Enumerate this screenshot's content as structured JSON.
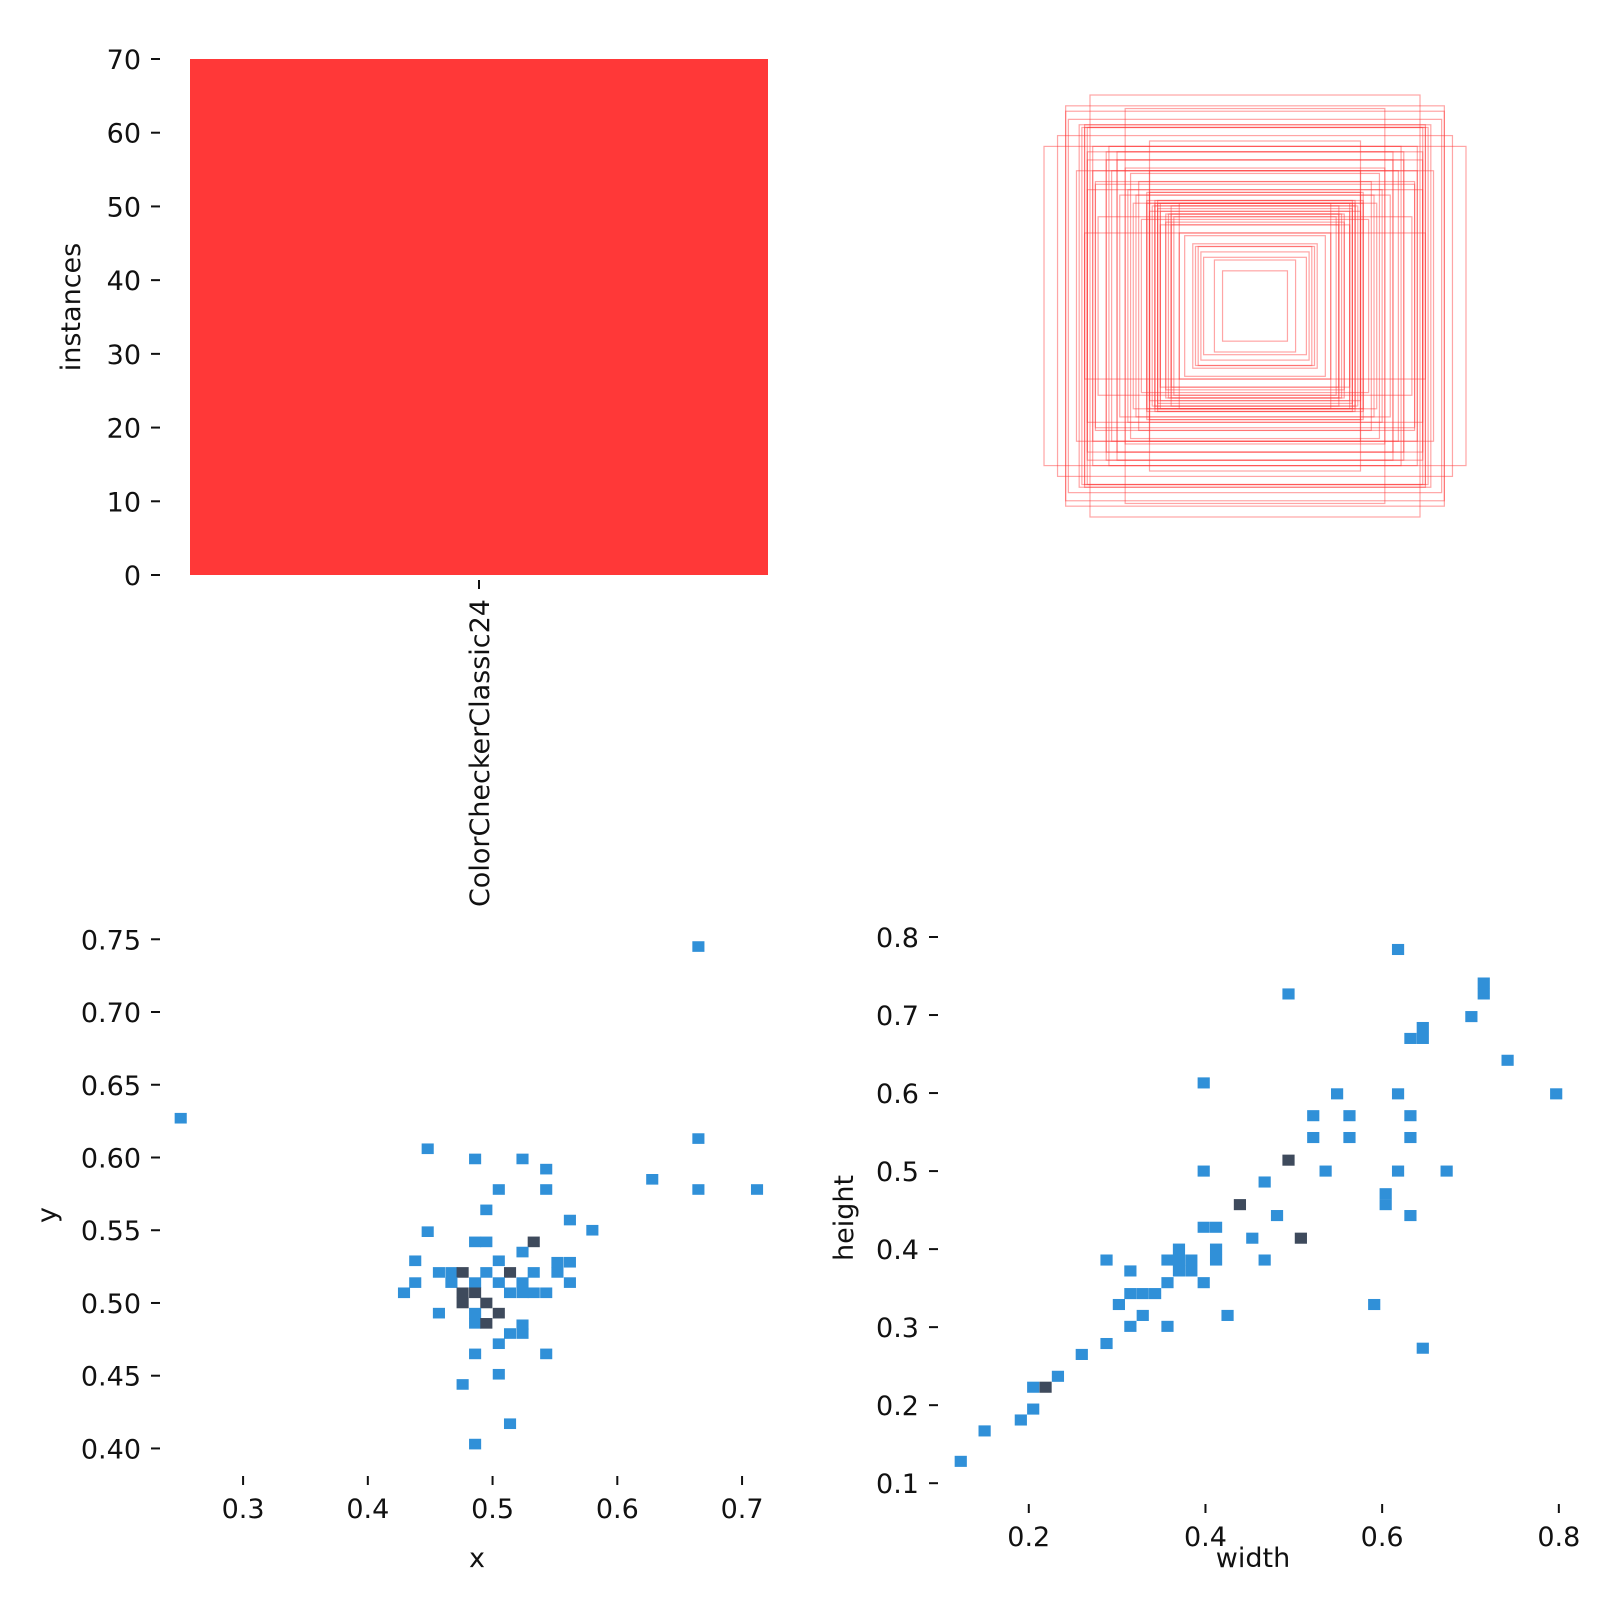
{
  "colors": {
    "bar": "#ff3838",
    "box_stroke": "#ff3838",
    "hist_low": "#3090d8",
    "hist_high": "#3e4a5c"
  },
  "chart_data": [
    {
      "name": "instances-per-class",
      "type": "bar",
      "categories": [
        "ColorCheckerClassic24"
      ],
      "values": [
        70
      ],
      "xlabel": "",
      "ylabel": "instances",
      "ylim": [
        0,
        70
      ],
      "yticks": [
        "0",
        "10",
        "20",
        "30",
        "40",
        "50",
        "60",
        "70"
      ],
      "grid": false
    },
    {
      "name": "box-shapes",
      "type": "box-overlay",
      "note_count": 70,
      "boxes_wh": [
        [
          0.12,
          0.13
        ],
        [
          0.15,
          0.17
        ],
        [
          0.19,
          0.18
        ],
        [
          0.2,
          0.2
        ],
        [
          0.21,
          0.22
        ],
        [
          0.22,
          0.22
        ],
        [
          0.23,
          0.23
        ],
        [
          0.26,
          0.26
        ],
        [
          0.28,
          0.27
        ],
        [
          0.28,
          0.38
        ],
        [
          0.3,
          0.33
        ],
        [
          0.31,
          0.3
        ],
        [
          0.31,
          0.34
        ],
        [
          0.31,
          0.37
        ],
        [
          0.32,
          0.34
        ],
        [
          0.33,
          0.31
        ],
        [
          0.33,
          0.34
        ],
        [
          0.35,
          0.3
        ],
        [
          0.35,
          0.35
        ],
        [
          0.35,
          0.38
        ],
        [
          0.36,
          0.36
        ],
        [
          0.36,
          0.38
        ],
        [
          0.37,
          0.37
        ],
        [
          0.37,
          0.38
        ],
        [
          0.37,
          0.39
        ],
        [
          0.38,
          0.37
        ],
        [
          0.39,
          0.35
        ],
        [
          0.39,
          0.42
        ],
        [
          0.39,
          0.5
        ],
        [
          0.39,
          0.61
        ],
        [
          0.4,
          0.38
        ],
        [
          0.4,
          0.39
        ],
        [
          0.4,
          0.42
        ],
        [
          0.42,
          0.32
        ],
        [
          0.43,
          0.46
        ],
        [
          0.44,
          0.41
        ],
        [
          0.45,
          0.38
        ],
        [
          0.46,
          0.49
        ],
        [
          0.47,
          0.43
        ],
        [
          0.48,
          0.51
        ],
        [
          0.48,
          0.73
        ],
        [
          0.5,
          0.41
        ],
        [
          0.51,
          0.54
        ],
        [
          0.51,
          0.57
        ],
        [
          0.53,
          0.5
        ],
        [
          0.54,
          0.59
        ],
        [
          0.55,
          0.54
        ],
        [
          0.55,
          0.57
        ],
        [
          0.58,
          0.33
        ],
        [
          0.59,
          0.45
        ],
        [
          0.59,
          0.46
        ],
        [
          0.6,
          0.5
        ],
        [
          0.6,
          0.59
        ],
        [
          0.61,
          0.78
        ],
        [
          0.62,
          0.43
        ],
        [
          0.62,
          0.54
        ],
        [
          0.62,
          0.57
        ],
        [
          0.62,
          0.66
        ],
        [
          0.63,
          0.27
        ],
        [
          0.63,
          0.66
        ],
        [
          0.63,
          0.67
        ],
        [
          0.64,
          0.66
        ],
        [
          0.65,
          0.67
        ],
        [
          0.66,
          0.5
        ],
        [
          0.69,
          0.69
        ],
        [
          0.7,
          0.72
        ],
        [
          0.7,
          0.74
        ],
        [
          0.73,
          0.63
        ],
        [
          0.78,
          0.59
        ],
        [
          0.36,
          0.39
        ]
      ]
    },
    {
      "name": "x-y-histogram",
      "type": "heatmap",
      "xlabel": "x",
      "ylabel": "y",
      "xlim": [
        0.235,
        0.72
      ],
      "ylim": [
        0.39,
        0.755
      ],
      "xticks": [
        0.3,
        0.4,
        0.5,
        0.6,
        0.7
      ],
      "xtick_labels": [
        "0.3",
        "0.4",
        "0.5",
        "0.6",
        "0.7"
      ],
      "yticks": [
        0.4,
        0.45,
        0.5,
        0.55,
        0.6,
        0.65,
        0.7,
        0.75
      ],
      "ytick_labels": [
        "0.40",
        "0.45",
        "0.50",
        "0.55",
        "0.60",
        "0.65",
        "0.70",
        "0.75"
      ],
      "bin_size": [
        0.0097,
        0.0073
      ],
      "points": [
        [
          0.25,
          0.627,
          1
        ],
        [
          0.665,
          0.745,
          1
        ],
        [
          0.665,
          0.613,
          1
        ],
        [
          0.665,
          0.578,
          1
        ],
        [
          0.712,
          0.578,
          1
        ],
        [
          0.628,
          0.585,
          1
        ],
        [
          0.448,
          0.606,
          1
        ],
        [
          0.486,
          0.599,
          1
        ],
        [
          0.524,
          0.599,
          1
        ],
        [
          0.543,
          0.592,
          1
        ],
        [
          0.505,
          0.578,
          1
        ],
        [
          0.543,
          0.578,
          1
        ],
        [
          0.495,
          0.564,
          1
        ],
        [
          0.562,
          0.557,
          1
        ],
        [
          0.58,
          0.55,
          1
        ],
        [
          0.448,
          0.549,
          1
        ],
        [
          0.486,
          0.542,
          1
        ],
        [
          0.495,
          0.542,
          1
        ],
        [
          0.533,
          0.542,
          3
        ],
        [
          0.438,
          0.529,
          1
        ],
        [
          0.505,
          0.529,
          1
        ],
        [
          0.524,
          0.535,
          1
        ],
        [
          0.552,
          0.528,
          1
        ],
        [
          0.562,
          0.528,
          1
        ],
        [
          0.457,
          0.521,
          1
        ],
        [
          0.467,
          0.521,
          1
        ],
        [
          0.476,
          0.521,
          3
        ],
        [
          0.495,
          0.521,
          1
        ],
        [
          0.514,
          0.521,
          3
        ],
        [
          0.533,
          0.521,
          1
        ],
        [
          0.552,
          0.521,
          1
        ],
        [
          0.438,
          0.514,
          1
        ],
        [
          0.467,
          0.514,
          1
        ],
        [
          0.486,
          0.514,
          1
        ],
        [
          0.505,
          0.514,
          1
        ],
        [
          0.524,
          0.514,
          1
        ],
        [
          0.562,
          0.514,
          1
        ],
        [
          0.429,
          0.507,
          1
        ],
        [
          0.476,
          0.507,
          3
        ],
        [
          0.486,
          0.507,
          3
        ],
        [
          0.514,
          0.507,
          1
        ],
        [
          0.524,
          0.507,
          1
        ],
        [
          0.533,
          0.507,
          1
        ],
        [
          0.543,
          0.507,
          1
        ],
        [
          0.476,
          0.5,
          3
        ],
        [
          0.495,
          0.5,
          3
        ],
        [
          0.457,
          0.493,
          1
        ],
        [
          0.486,
          0.493,
          1
        ],
        [
          0.505,
          0.493,
          3
        ],
        [
          0.486,
          0.486,
          1
        ],
        [
          0.495,
          0.486,
          3
        ],
        [
          0.524,
          0.485,
          1
        ],
        [
          0.514,
          0.479,
          1
        ],
        [
          0.524,
          0.479,
          1
        ],
        [
          0.505,
          0.472,
          1
        ],
        [
          0.486,
          0.465,
          1
        ],
        [
          0.543,
          0.465,
          1
        ],
        [
          0.505,
          0.451,
          1
        ],
        [
          0.476,
          0.444,
          1
        ],
        [
          0.514,
          0.417,
          1
        ],
        [
          0.486,
          0.403,
          1
        ]
      ]
    },
    {
      "name": "width-height-histogram",
      "type": "heatmap",
      "xlabel": "width",
      "ylabel": "height",
      "xlim": [
        0.0995,
        0.79
      ],
      "ylim": [
        0.09,
        0.8
      ],
      "xticks": [
        0.2,
        0.4,
        0.6,
        0.8
      ],
      "xtick_labels": [
        "0.2",
        "0.4",
        "0.6",
        "0.8"
      ],
      "yticks": [
        0.1,
        0.2,
        0.3,
        0.4,
        0.5,
        0.6,
        0.7,
        0.8
      ],
      "ytick_labels": [
        "0.1",
        "0.2",
        "0.3",
        "0.4",
        "0.5",
        "0.6",
        "0.7",
        "0.8"
      ],
      "bin_size": [
        0.0138,
        0.0142
      ],
      "points": [
        [
          0.123,
          0.128,
          1
        ],
        [
          0.15,
          0.167,
          1
        ],
        [
          0.191,
          0.181,
          1
        ],
        [
          0.205,
          0.195,
          1
        ],
        [
          0.205,
          0.223,
          1
        ],
        [
          0.219,
          0.223,
          3
        ],
        [
          0.233,
          0.237,
          1
        ],
        [
          0.26,
          0.265,
          1
        ],
        [
          0.288,
          0.279,
          1
        ],
        [
          0.288,
          0.386,
          1
        ],
        [
          0.302,
          0.329,
          1
        ],
        [
          0.315,
          0.301,
          1
        ],
        [
          0.315,
          0.343,
          1
        ],
        [
          0.315,
          0.372,
          1
        ],
        [
          0.329,
          0.343,
          1
        ],
        [
          0.329,
          0.315,
          1
        ],
        [
          0.343,
          0.343,
          1
        ],
        [
          0.357,
          0.301,
          1
        ],
        [
          0.357,
          0.357,
          1
        ],
        [
          0.357,
          0.386,
          1
        ],
        [
          0.37,
          0.372,
          1
        ],
        [
          0.37,
          0.386,
          1
        ],
        [
          0.37,
          0.4,
          1
        ],
        [
          0.384,
          0.372,
          1
        ],
        [
          0.384,
          0.386,
          1
        ],
        [
          0.398,
          0.357,
          1
        ],
        [
          0.398,
          0.428,
          1
        ],
        [
          0.398,
          0.5,
          1
        ],
        [
          0.398,
          0.613,
          1
        ],
        [
          0.412,
          0.386,
          1
        ],
        [
          0.412,
          0.4,
          1
        ],
        [
          0.412,
          0.428,
          1
        ],
        [
          0.425,
          0.315,
          1
        ],
        [
          0.439,
          0.457,
          3
        ],
        [
          0.453,
          0.414,
          1
        ],
        [
          0.467,
          0.386,
          1
        ],
        [
          0.467,
          0.486,
          1
        ],
        [
          0.481,
          0.443,
          1
        ],
        [
          0.494,
          0.514,
          3
        ],
        [
          0.494,
          0.727,
          1
        ],
        [
          0.508,
          0.414,
          3
        ],
        [
          0.522,
          0.543,
          1
        ],
        [
          0.522,
          0.571,
          1
        ],
        [
          0.536,
          0.5,
          1
        ],
        [
          0.549,
          0.599,
          1
        ],
        [
          0.563,
          0.543,
          1
        ],
        [
          0.563,
          0.571,
          1
        ],
        [
          0.591,
          0.329,
          1
        ],
        [
          0.604,
          0.457,
          1
        ],
        [
          0.604,
          0.471,
          1
        ],
        [
          0.618,
          0.5,
          1
        ],
        [
          0.618,
          0.599,
          1
        ],
        [
          0.618,
          0.784,
          1
        ],
        [
          0.632,
          0.443,
          1
        ],
        [
          0.632,
          0.543,
          1
        ],
        [
          0.632,
          0.571,
          1
        ],
        [
          0.632,
          0.67,
          1
        ],
        [
          0.646,
          0.67,
          1
        ],
        [
          0.646,
          0.684,
          1
        ],
        [
          0.646,
          0.273,
          1
        ],
        [
          0.673,
          0.5,
          1
        ],
        [
          0.701,
          0.698,
          1
        ],
        [
          0.715,
          0.727,
          1
        ],
        [
          0.715,
          0.741,
          1
        ],
        [
          0.742,
          0.642,
          1
        ],
        [
          0.797,
          0.599,
          1
        ]
      ]
    }
  ]
}
